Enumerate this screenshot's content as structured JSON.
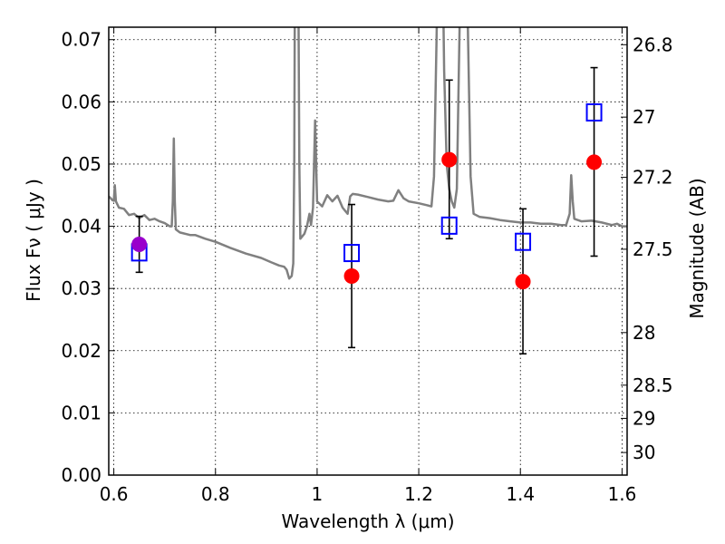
{
  "chart_data": {
    "type": "scatter",
    "title": "",
    "xlabel": "Wavelength  λ (μm)",
    "ylabel": "Flux  Fν  ( μJy )",
    "ylabel_right": "Magnitude (AB)",
    "xlim": [
      0.59,
      1.61
    ],
    "ylim": [
      0.0,
      0.072
    ],
    "grid": true,
    "x_ticks": [
      {
        "value": 0.6,
        "label": "0.6"
      },
      {
        "value": 0.8,
        "label": "0.8"
      },
      {
        "value": 1.0,
        "label": "1"
      },
      {
        "value": 1.2,
        "label": "1.2"
      },
      {
        "value": 1.4,
        "label": "1.4"
      },
      {
        "value": 1.6,
        "label": "1.6"
      }
    ],
    "y_ticks": [
      {
        "value": 0.0,
        "label": "0.00"
      },
      {
        "value": 0.01,
        "label": "0.01"
      },
      {
        "value": 0.02,
        "label": "0.02"
      },
      {
        "value": 0.03,
        "label": "0.03"
      },
      {
        "value": 0.04,
        "label": "0.04"
      },
      {
        "value": 0.05,
        "label": "0.05"
      },
      {
        "value": 0.06,
        "label": "0.06"
      },
      {
        "value": 0.07,
        "label": "0.07"
      }
    ],
    "right_ticks": [
      {
        "mag": 26.8,
        "label": "26.8"
      },
      {
        "mag": 27.0,
        "label": "27"
      },
      {
        "mag": 27.2,
        "label": "27.2"
      },
      {
        "mag": 27.5,
        "label": "27.5"
      },
      {
        "mag": 28.0,
        "label": "28"
      },
      {
        "mag": 28.5,
        "label": "28.5"
      },
      {
        "mag": 29.0,
        "label": "29"
      },
      {
        "mag": 30.0,
        "label": "30"
      }
    ],
    "series": [
      {
        "kind": "line",
        "color": "#808080",
        "points": [
          [
            0.59,
            0.0448
          ],
          [
            0.594,
            0.0445
          ],
          [
            0.597,
            0.0442
          ],
          [
            0.6,
            0.0441
          ],
          [
            0.602,
            0.0466
          ],
          [
            0.604,
            0.044
          ],
          [
            0.61,
            0.043
          ],
          [
            0.62,
            0.0428
          ],
          [
            0.63,
            0.0418
          ],
          [
            0.64,
            0.042
          ],
          [
            0.65,
            0.0413
          ],
          [
            0.66,
            0.0418
          ],
          [
            0.67,
            0.041
          ],
          [
            0.68,
            0.0412
          ],
          [
            0.69,
            0.0408
          ],
          [
            0.7,
            0.0405
          ],
          [
            0.71,
            0.04
          ],
          [
            0.714,
            0.04
          ],
          [
            0.716,
            0.044
          ],
          [
            0.718,
            0.0541
          ],
          [
            0.72,
            0.044
          ],
          [
            0.722,
            0.0395
          ],
          [
            0.73,
            0.039
          ],
          [
            0.75,
            0.0386
          ],
          [
            0.76,
            0.0386
          ],
          [
            0.78,
            0.038
          ],
          [
            0.8,
            0.0375
          ],
          [
            0.83,
            0.0365
          ],
          [
            0.86,
            0.0356
          ],
          [
            0.89,
            0.0349
          ],
          [
            0.91,
            0.0342
          ],
          [
            0.925,
            0.0337
          ],
          [
            0.935,
            0.0335
          ],
          [
            0.94,
            0.033
          ],
          [
            0.945,
            0.0316
          ],
          [
            0.95,
            0.032
          ],
          [
            0.953,
            0.034
          ],
          [
            0.955,
            0.05
          ],
          [
            0.957,
            0.095
          ],
          [
            0.962,
            0.095
          ],
          [
            0.965,
            0.05
          ],
          [
            0.967,
            0.038
          ],
          [
            0.975,
            0.0388
          ],
          [
            0.98,
            0.04
          ],
          [
            0.985,
            0.042
          ],
          [
            0.988,
            0.0402
          ],
          [
            0.992,
            0.043
          ],
          [
            0.996,
            0.057
          ],
          [
            1.0,
            0.044
          ],
          [
            1.01,
            0.0432
          ],
          [
            1.02,
            0.045
          ],
          [
            1.03,
            0.044
          ],
          [
            1.04,
            0.0449
          ],
          [
            1.05,
            0.043
          ],
          [
            1.055,
            0.0425
          ],
          [
            1.06,
            0.042
          ],
          [
            1.065,
            0.0448
          ],
          [
            1.07,
            0.0452
          ],
          [
            1.08,
            0.0451
          ],
          [
            1.1,
            0.0447
          ],
          [
            1.12,
            0.0443
          ],
          [
            1.14,
            0.044
          ],
          [
            1.15,
            0.0441
          ],
          [
            1.16,
            0.0458
          ],
          [
            1.17,
            0.0445
          ],
          [
            1.18,
            0.044
          ],
          [
            1.2,
            0.0437
          ],
          [
            1.215,
            0.0434
          ],
          [
            1.225,
            0.0432
          ],
          [
            1.23,
            0.048
          ],
          [
            1.235,
            0.07
          ],
          [
            1.24,
            0.095
          ],
          [
            1.245,
            0.095
          ],
          [
            1.25,
            0.065
          ],
          [
            1.255,
            0.05
          ],
          [
            1.26,
            0.046
          ],
          [
            1.265,
            0.044
          ],
          [
            1.27,
            0.043
          ],
          [
            1.275,
            0.046
          ],
          [
            1.28,
            0.07
          ],
          [
            1.285,
            0.095
          ],
          [
            1.292,
            0.095
          ],
          [
            1.297,
            0.07
          ],
          [
            1.302,
            0.048
          ],
          [
            1.308,
            0.042
          ],
          [
            1.32,
            0.0415
          ],
          [
            1.34,
            0.0413
          ],
          [
            1.36,
            0.041
          ],
          [
            1.38,
            0.0408
          ],
          [
            1.4,
            0.0406
          ],
          [
            1.42,
            0.0406
          ],
          [
            1.44,
            0.0404
          ],
          [
            1.46,
            0.0404
          ],
          [
            1.48,
            0.0402
          ],
          [
            1.49,
            0.0402
          ],
          [
            1.497,
            0.042
          ],
          [
            1.5,
            0.0482
          ],
          [
            1.503,
            0.044
          ],
          [
            1.506,
            0.0412
          ],
          [
            1.52,
            0.0408
          ],
          [
            1.54,
            0.0409
          ],
          [
            1.56,
            0.0406
          ],
          [
            1.58,
            0.0402
          ],
          [
            1.59,
            0.0404
          ],
          [
            1.6,
            0.04
          ],
          [
            1.61,
            0.04
          ]
        ]
      },
      {
        "kind": "points",
        "marker": "square-open",
        "color": "#0000ff",
        "points": [
          [
            0.65,
            0.0358
          ],
          [
            1.068,
            0.0357
          ],
          [
            1.26,
            0.0401
          ],
          [
            1.405,
            0.0375
          ],
          [
            1.545,
            0.0583
          ]
        ]
      },
      {
        "kind": "points",
        "marker": "circle",
        "color": "#ff0000",
        "points": [
          [
            1.068,
            0.032
          ],
          [
            1.26,
            0.0507
          ],
          [
            1.405,
            0.0311
          ],
          [
            1.545,
            0.0503
          ]
        ],
        "error_bars": [
          [
            0.0205,
            0.0435
          ],
          [
            0.038,
            0.0635
          ],
          [
            0.0195,
            0.0428
          ],
          [
            0.0352,
            0.0655
          ]
        ]
      },
      {
        "kind": "points",
        "marker": "circle",
        "color": "#9900cc",
        "points": [
          [
            0.65,
            0.0371
          ]
        ],
        "error_bars": [
          [
            0.0326,
            0.0416
          ]
        ]
      }
    ]
  }
}
